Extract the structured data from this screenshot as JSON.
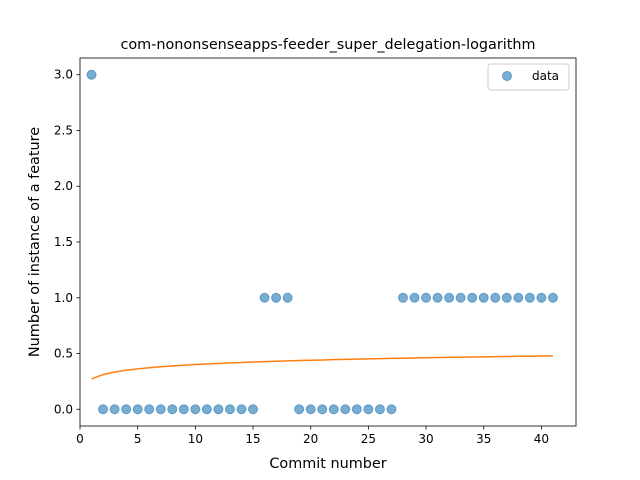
{
  "chart_data": {
    "type": "scatter",
    "title": "com-nononsenseapps-feeder_super_delegation-logarithm",
    "xlabel": "Commit number",
    "ylabel": "Number of instance of a feature",
    "xlim": [
      -0.0,
      43.0
    ],
    "ylim": [
      -0.15,
      3.15
    ],
    "x_ticks": [
      0,
      5,
      10,
      15,
      20,
      25,
      30,
      35,
      40
    ],
    "y_ticks": [
      0.0,
      0.5,
      1.0,
      1.5,
      2.0,
      2.5,
      3.0
    ],
    "x_tick_labels": [
      "0",
      "5",
      "10",
      "15",
      "20",
      "25",
      "30",
      "35",
      "40"
    ],
    "y_tick_labels": [
      "0.0",
      "0.5",
      "1.0",
      "1.5",
      "2.0",
      "2.5",
      "3.0"
    ],
    "grid": false,
    "legend_position": "top-right",
    "series": [
      {
        "name": "data",
        "kind": "scatter",
        "color": "#1f77b4",
        "x": [
          1,
          2,
          3,
          4,
          5,
          6,
          7,
          8,
          9,
          10,
          11,
          12,
          13,
          14,
          15,
          16,
          17,
          18,
          19,
          20,
          21,
          22,
          23,
          24,
          25,
          26,
          27,
          28,
          29,
          30,
          31,
          32,
          33,
          34,
          35,
          36,
          37,
          38,
          39,
          40,
          41
        ],
        "y": [
          3,
          0,
          0,
          0,
          0,
          0,
          0,
          0,
          0,
          0,
          0,
          0,
          0,
          0,
          0,
          1,
          1,
          1,
          0,
          0,
          0,
          0,
          0,
          0,
          0,
          0,
          0,
          1,
          1,
          1,
          1,
          1,
          1,
          1,
          1,
          1,
          1,
          1,
          1,
          1,
          1
        ]
      },
      {
        "kind": "line",
        "color": "#ff7f0e",
        "x": [
          1,
          2,
          3,
          4,
          5,
          6,
          7,
          8,
          9,
          10,
          11,
          12,
          13,
          14,
          15,
          16,
          17,
          18,
          19,
          20,
          21,
          22,
          23,
          24,
          25,
          26,
          27,
          28,
          29,
          30,
          31,
          32,
          33,
          34,
          35,
          36,
          37,
          38,
          39,
          40,
          41
        ],
        "y": [
          0.272,
          0.311,
          0.334,
          0.35,
          0.362,
          0.372,
          0.381,
          0.389,
          0.395,
          0.401,
          0.406,
          0.411,
          0.416,
          0.42,
          0.424,
          0.427,
          0.431,
          0.434,
          0.437,
          0.44,
          0.442,
          0.445,
          0.447,
          0.45,
          0.452,
          0.454,
          0.456,
          0.458,
          0.46,
          0.462,
          0.464,
          0.466,
          0.467,
          0.469,
          0.47,
          0.472,
          0.473,
          0.475,
          0.476,
          0.478,
          0.479
        ]
      }
    ]
  }
}
